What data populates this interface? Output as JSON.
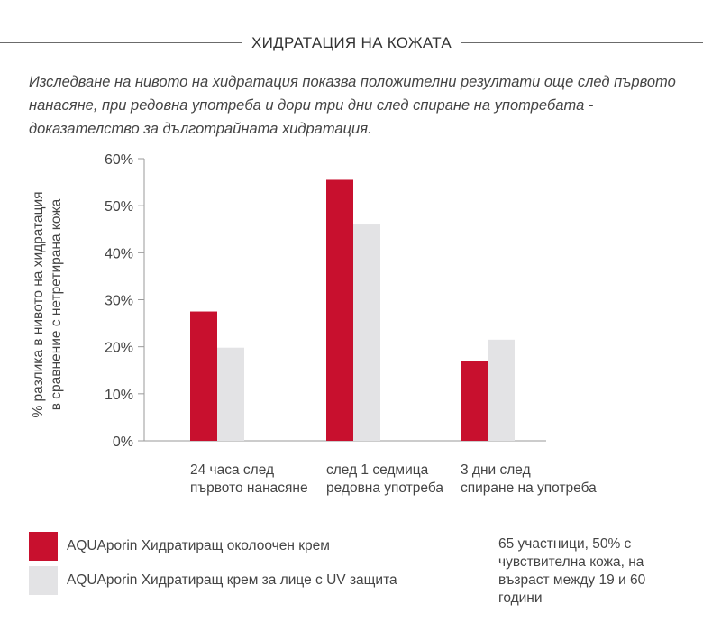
{
  "header": {
    "title": "ХИДРАТАЦИЯ НА КОЖАТА"
  },
  "intro": "Изследване на нивото на хидратация показва положителни резултати още след първото нанасяне, при редовна употреба и дори три дни след спиране на употребата - доказателство за дълготрайната хидратация.",
  "colors": {
    "primary": "#c8102e",
    "secondary": "#e3e3e5",
    "axis": "#9a9a9a"
  },
  "chart_data": {
    "type": "bar",
    "categories": [
      [
        "24 часа след",
        "първото нанасяне"
      ],
      [
        "след 1 седмица",
        "редовна употреба"
      ],
      [
        "3 дни след",
        "спиране на употреба"
      ]
    ],
    "series": [
      {
        "name": "AQUAporin Хидратиращ околоочен крем",
        "values": [
          27.5,
          55.5,
          17
        ]
      },
      {
        "name": "AQUAporin Хидратиращ крем за лице с UV защита",
        "values": [
          19.8,
          46,
          21.5
        ]
      }
    ],
    "ylabel": [
      "% разлика в нивото на хидратация",
      "в сравнение с нетретирана кожа"
    ],
    "ylim": [
      0,
      60
    ],
    "yticks": [
      "0%",
      "10%",
      "20%",
      "30%",
      "40%",
      "50%",
      "60%"
    ],
    "grid": false,
    "legend": "bottom-left"
  },
  "note": "65 участници, 50% с чувствителна кожа, на възраст между 19 и 60 години"
}
